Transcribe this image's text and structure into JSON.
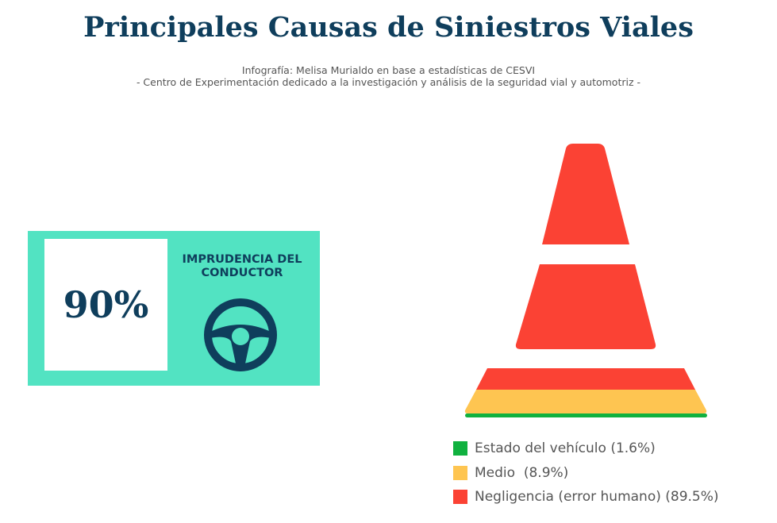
{
  "header": {
    "title": "Principales Causas de Siniestros Viales",
    "subtitle_lines": [
      "Infografía: Melisa Murialdo en base a estadísticas de CESVI",
      "- Centro de Experimentación dedicado a la investigación y análisis de la seguridad vial y automotriz -"
    ]
  },
  "highlight": {
    "value": "90%",
    "label_lines": [
      "IMPRUDENCIA DEL",
      "CONDUCTOR"
    ]
  },
  "legend": [
    "Estado del vehículo (1.6%)",
    "Medio  (8.9%)",
    "Negligencia (error humano) (89.5%)"
  ]
}
